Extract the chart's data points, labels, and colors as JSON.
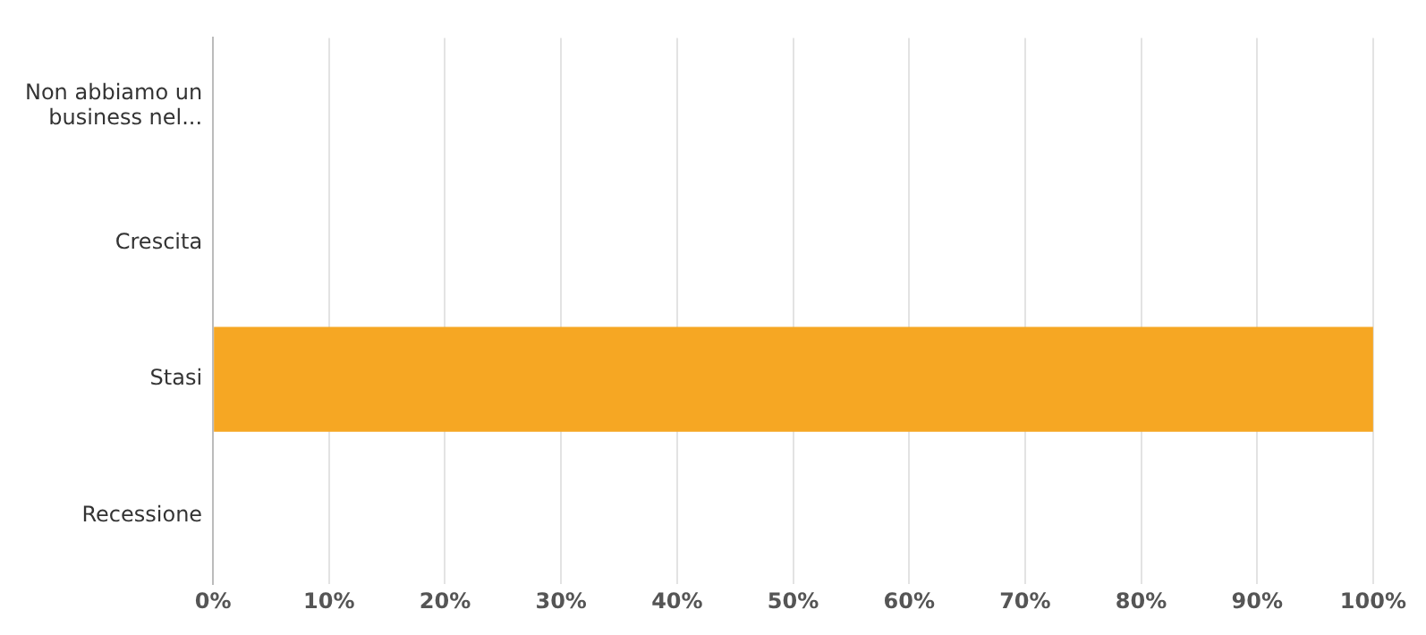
{
  "chart_data": {
    "type": "bar",
    "orientation": "horizontal",
    "categories": [
      "Non abbiamo un business nel...",
      "Crescita",
      "Stasi",
      "Recessione"
    ],
    "series": [
      {
        "color": "#f6a723",
        "values": [
          0,
          0,
          100,
          0
        ]
      }
    ],
    "xlim": [
      0,
      100
    ],
    "xticks": [
      {
        "value": 0,
        "label": "0%"
      },
      {
        "value": 10,
        "label": "10%"
      },
      {
        "value": 20,
        "label": "20%"
      },
      {
        "value": 30,
        "label": "30%"
      },
      {
        "value": 40,
        "label": "40%"
      },
      {
        "value": 50,
        "label": "50%"
      },
      {
        "value": 60,
        "label": "60%"
      },
      {
        "value": 70,
        "label": "70%"
      },
      {
        "value": 80,
        "label": "80%"
      },
      {
        "value": 90,
        "label": "90%"
      },
      {
        "value": 100,
        "label": "100%"
      }
    ],
    "grid": "x",
    "legend": false
  }
}
